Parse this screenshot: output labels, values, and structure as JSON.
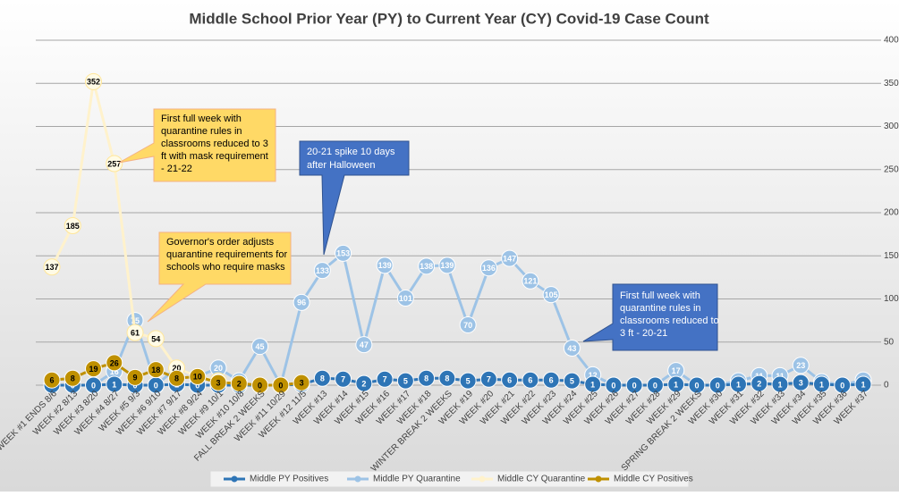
{
  "chart_data": {
    "type": "line",
    "title": "Middle School Prior Year (PY) to Current Year (CY) Covid-19 Case Count",
    "categories": [
      "WEEK #1 ENDS 8/6",
      "WEEK #2 8/13",
      "WEEK #3 8/20",
      "WEEK #4 8/27",
      "WEEK #5 9/3",
      "WEEK #6 9/10",
      "WEEK #7 9/17",
      "WEEK #8 9/24",
      "WEEK #9 10/1",
      "WEEK #10 10/8",
      "FALL BREAK 2 WEEKS",
      "WEEK #11 10/29",
      "WEEK #12 11/5",
      "WEEK #13",
      "WEEK #14",
      "WEEK #15",
      "WEEK #16",
      "WEEK #17",
      "WEEK #18",
      "WINTER BREAK 2 WEEKS",
      "WEEK #19",
      "WEEK #20",
      "WEEK #21",
      "WEEK #22",
      "WEEK #23",
      "WEEK #24",
      "WEEK #25",
      "WEEK #26",
      "WEEK #27",
      "WEEK #28",
      "WEEK #29",
      "SPRING BREAK 2 WEEKS",
      "WEEK #30",
      "WEEK #31",
      "WEEK #32",
      "WEEK #33",
      "WEEK #34",
      "WEEK #35",
      "WEEK #36",
      "WEEK #37"
    ],
    "series": [
      {
        "name": "Middle PY Quarantine",
        "color": "#9dc3e6",
        "values": [
          0,
          0,
          0,
          16,
          75,
          0,
          20,
          10,
          20,
          5,
          45,
          0,
          96,
          133,
          153,
          47,
          139,
          101,
          138,
          139,
          70,
          136,
          147,
          121,
          105,
          43,
          12,
          0,
          0,
          0,
          17,
          0,
          0,
          5,
          11,
          11,
          23,
          4,
          0,
          6
        ]
      },
      {
        "name": "Middle PY Positives",
        "color": "#2e75b6",
        "values": [
          0,
          0,
          0,
          1,
          0,
          0,
          1,
          0,
          0,
          0,
          0,
          0,
          1,
          8,
          7,
          2,
          7,
          5,
          8,
          8,
          5,
          7,
          6,
          6,
          6,
          5,
          1,
          0,
          0,
          0,
          1,
          0,
          0,
          1,
          2,
          1,
          3,
          1,
          0,
          1
        ]
      },
      {
        "name": "Middle CY Quarantine",
        "color": "#fff2cc",
        "values": [
          137,
          185,
          352,
          257,
          61,
          54,
          20,
          10,
          5,
          2,
          0,
          0,
          3,
          null,
          null,
          null,
          null,
          null,
          null,
          null,
          null,
          null,
          null,
          null,
          null,
          null,
          null,
          null,
          null,
          null,
          null,
          null,
          null,
          null,
          null,
          null,
          null,
          null,
          null,
          null
        ]
      },
      {
        "name": "Middle CY Positives",
        "color": "#bf9000",
        "values": [
          6,
          8,
          19,
          26,
          9,
          18,
          8,
          10,
          3,
          2,
          0,
          0,
          3,
          null,
          null,
          null,
          null,
          null,
          null,
          null,
          null,
          null,
          null,
          null,
          null,
          null,
          null,
          null,
          null,
          null,
          null,
          null,
          null,
          null,
          null,
          null,
          null,
          null,
          null,
          null
        ]
      }
    ],
    "legend_order": [
      1,
      0,
      2,
      3
    ],
    "ylim": [
      0,
      400
    ],
    "yticks": [
      0,
      50,
      100,
      150,
      200,
      250,
      300,
      350,
      400
    ],
    "grid": true,
    "annotations": [
      {
        "lines": [
          "First full week with",
          "quarantine rules in",
          "classrooms reduced to 3",
          "ft with mask requirement",
          "- 21-22"
        ]
      },
      {
        "lines": [
          "Governor's order adjusts",
          "quarantine requirements for",
          "schools who require masks"
        ]
      },
      {
        "lines": [
          "20-21 spike 10 days",
          "after Halloween"
        ]
      },
      {
        "lines": [
          "First full week with",
          "quarantine rules in",
          "classrooms reduced to",
          "3 ft - 20-21"
        ]
      }
    ]
  }
}
